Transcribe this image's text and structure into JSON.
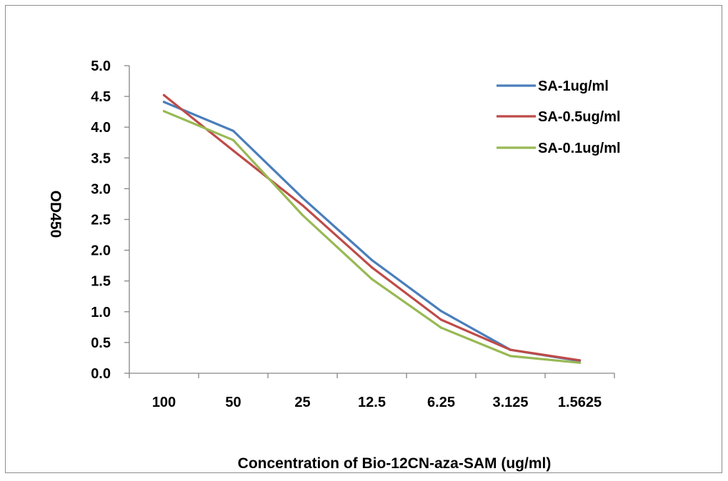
{
  "chart_data": {
    "type": "line",
    "title": "",
    "xlabel": "Concentration of Bio-12CN-aza-SAM (ug/ml)",
    "ylabel": "OD450",
    "categories": [
      "100",
      "50",
      "25",
      "12.5",
      "6.25",
      "3.125",
      "1.5625"
    ],
    "ylim": [
      0,
      5
    ],
    "yticks": [
      "0.0",
      "0.5",
      "1.0",
      "1.5",
      "2.0",
      "2.5",
      "3.0",
      "3.5",
      "4.0",
      "4.5",
      "5.0"
    ],
    "grid": false,
    "legend_position": "top-right",
    "series": [
      {
        "name": "SA-1ug/ml",
        "color": "#4a7ebb",
        "values": [
          4.41,
          3.94,
          2.85,
          1.84,
          1.01,
          0.38,
          0.2
        ]
      },
      {
        "name": "SA-0.5ug/ml",
        "color": "#be4b48",
        "values": [
          4.52,
          3.62,
          2.73,
          1.72,
          0.87,
          0.38,
          0.21
        ]
      },
      {
        "name": "SA-0.1ug/ml",
        "color": "#98b954",
        "values": [
          4.26,
          3.79,
          2.57,
          1.53,
          0.74,
          0.28,
          0.17
        ]
      }
    ]
  }
}
